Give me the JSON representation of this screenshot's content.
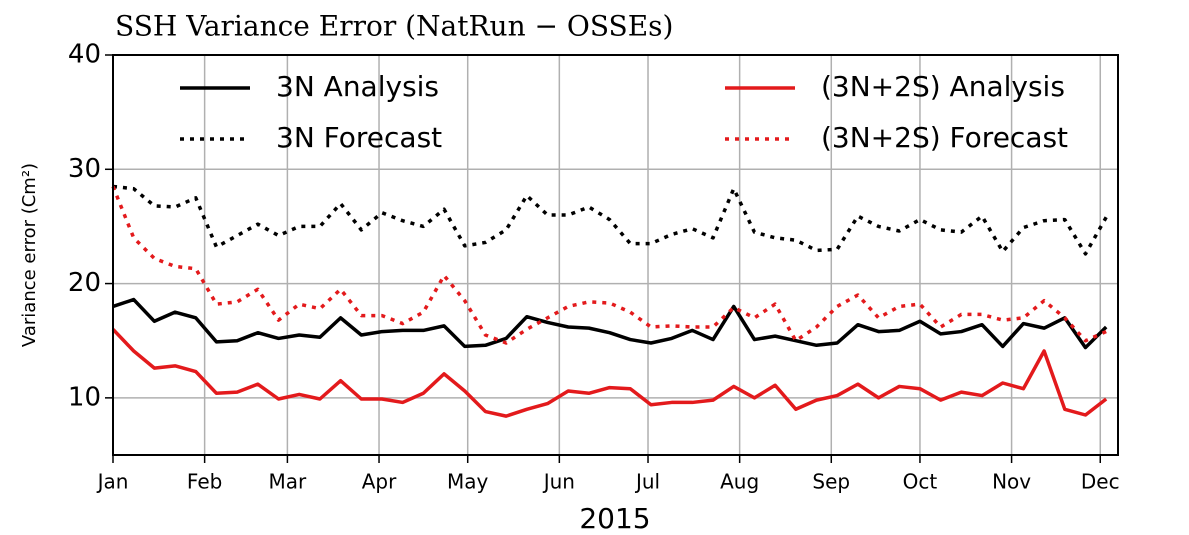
{
  "chart_data": {
    "type": "line",
    "title": "SSH Variance Error (NatRun − OSSEs)",
    "xlabel": "2015",
    "ylabel": "Variance error (Cm²)",
    "x": [
      0,
      7,
      14,
      21,
      28,
      35,
      42,
      49,
      56,
      63,
      70,
      77,
      84,
      91,
      98,
      105,
      112,
      119,
      126,
      133,
      140,
      147,
      154,
      161,
      168,
      175,
      182,
      189,
      196,
      203,
      210,
      217,
      224,
      231,
      238,
      245,
      252,
      259,
      266,
      273,
      280,
      287,
      294,
      301,
      308,
      315,
      322,
      329,
      336
    ],
    "xlim": [
      0,
      340
    ],
    "xticks": [
      {
        "value": 0,
        "label": "Jan"
      },
      {
        "value": 31,
        "label": "Feb"
      },
      {
        "value": 59,
        "label": "Mar"
      },
      {
        "value": 90,
        "label": "Apr"
      },
      {
        "value": 120,
        "label": "May"
      },
      {
        "value": 151,
        "label": "Jun"
      },
      {
        "value": 181,
        "label": "Jul"
      },
      {
        "value": 212,
        "label": "Aug"
      },
      {
        "value": 243,
        "label": "Sep"
      },
      {
        "value": 273,
        "label": "Oct"
      },
      {
        "value": 304,
        "label": "Nov"
      },
      {
        "value": 334,
        "label": "Dec"
      }
    ],
    "ylim": [
      5,
      40
    ],
    "yticks": [
      10,
      20,
      30,
      40
    ],
    "grid": true,
    "series": [
      {
        "name": "3N Analysis",
        "color": "#000000",
        "style": "solid",
        "values": [
          18.0,
          18.6,
          16.7,
          17.5,
          17.0,
          14.9,
          15.0,
          15.7,
          15.2,
          15.5,
          15.3,
          17.0,
          15.5,
          15.8,
          15.9,
          15.9,
          16.3,
          14.5,
          14.6,
          15.2,
          17.1,
          16.6,
          16.2,
          16.1,
          15.7,
          15.1,
          14.8,
          15.2,
          15.9,
          15.1,
          18.0,
          15.1,
          15.4,
          15.0,
          14.6,
          14.8,
          16.4,
          15.8,
          15.9,
          16.7,
          15.6,
          15.8,
          16.4,
          14.5,
          16.5,
          16.1,
          17.0,
          14.4,
          16.2
        ]
      },
      {
        "name": "3N Forecast",
        "color": "#000000",
        "style": "dotted",
        "values": [
          28.5,
          28.3,
          26.8,
          26.7,
          27.5,
          23.2,
          24.2,
          25.2,
          24.2,
          25.0,
          25.0,
          27.0,
          24.7,
          26.2,
          25.5,
          25.0,
          26.5,
          23.3,
          23.6,
          24.7,
          27.7,
          26.0,
          26.0,
          26.7,
          25.6,
          23.5,
          23.5,
          24.3,
          24.8,
          24.0,
          28.3,
          24.5,
          24.0,
          23.8,
          22.9,
          23.0,
          25.9,
          25.0,
          24.6,
          25.6,
          24.7,
          24.5,
          25.9,
          22.8,
          24.9,
          25.5,
          25.6,
          22.6,
          25.8
        ]
      },
      {
        "name": "(3N+2S) Analysis",
        "color": "#e31a1c",
        "style": "solid",
        "values": [
          16.0,
          14.1,
          12.6,
          12.8,
          12.3,
          10.4,
          10.5,
          11.2,
          9.9,
          10.3,
          9.9,
          11.5,
          9.9,
          9.9,
          9.6,
          10.4,
          12.1,
          10.6,
          8.8,
          8.4,
          9.0,
          9.5,
          10.6,
          10.4,
          10.9,
          10.8,
          9.4,
          9.6,
          9.6,
          9.8,
          11.0,
          10.0,
          11.1,
          9.0,
          9.8,
          10.2,
          11.2,
          10.0,
          11.0,
          10.8,
          9.8,
          10.5,
          10.2,
          11.3,
          10.8,
          14.1,
          9.0,
          8.5,
          9.9
        ]
      },
      {
        "name": "(3N+2S) Forecast",
        "color": "#e31a1c",
        "style": "dotted",
        "values": [
          28.5,
          24.0,
          22.2,
          21.5,
          21.3,
          18.2,
          18.4,
          19.5,
          16.8,
          18.2,
          17.8,
          19.5,
          17.2,
          17.2,
          16.5,
          17.5,
          20.7,
          18.5,
          15.5,
          14.8,
          16.0,
          17.0,
          18.0,
          18.4,
          18.3,
          17.5,
          16.2,
          16.3,
          16.2,
          16.2,
          17.9,
          17.0,
          18.2,
          15.0,
          16.2,
          18.0,
          19.0,
          17.0,
          18.0,
          18.2,
          16.2,
          17.3,
          17.3,
          16.8,
          17.0,
          18.5,
          17.0,
          15.0,
          15.8
        ]
      }
    ],
    "legend": "upper center"
  }
}
